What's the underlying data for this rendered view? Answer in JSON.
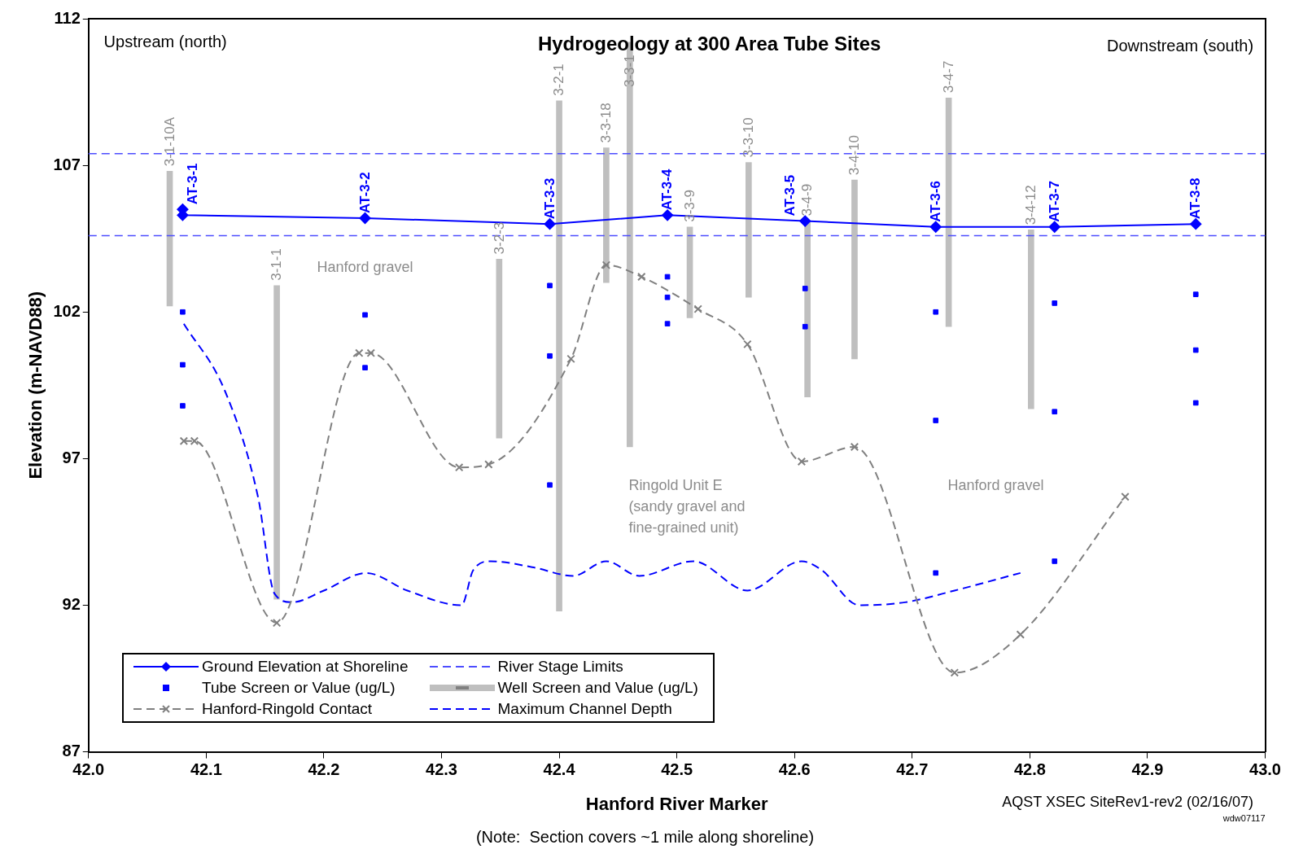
{
  "chart_data": {
    "type": "line",
    "title": "Hydrogeology at 300 Area Tube Sites",
    "xlabel": "Hanford River Marker",
    "ylabel": "Elevation (m-NAVD88)",
    "xlim": [
      42,
      43
    ],
    "xticks": [
      {
        "value": 42,
        "label": "42.0"
      },
      42.1,
      42.2,
      42.3,
      42.4,
      42.5,
      42.6,
      42.7,
      42.8,
      42.9,
      {
        "value": 43,
        "label": "43.0"
      }
    ],
    "ylim": [
      87,
      112
    ],
    "yticks": [
      87,
      92,
      97,
      102,
      107,
      112
    ],
    "ref_lines": [
      {
        "axis": "y",
        "value": 107.4,
        "label": "River Stage Limits",
        "color": "#4d4dff",
        "line_style": "dashed"
      },
      {
        "axis": "y",
        "value": 104.6,
        "color": "#4d4dff",
        "line_style": "dashed"
      }
    ],
    "grid": false,
    "legend": "bottom left",
    "series": [
      {
        "name": "Ground Elevation at Shoreline",
        "color": "#0000ff",
        "marker": "diamond",
        "line_style": "solid",
        "x": [
          42.08,
          42.08,
          42.235,
          42.392,
          42.492,
          42.609,
          42.72,
          42.821,
          42.941
        ],
        "values": [
          105.5,
          105.3,
          105.2,
          105.0,
          105.3,
          105.1,
          104.9,
          104.9,
          105.0
        ]
      },
      {
        "name": "Tube Screen or Value (ug/L)",
        "type": "scatter",
        "color": "#0000ff",
        "marker": "square",
        "x": [
          42.08,
          42.08,
          42.08,
          42.235,
          42.235,
          42.392,
          42.392,
          42.392,
          42.492,
          42.492,
          42.492,
          42.609,
          42.609,
          42.72,
          42.72,
          42.72,
          42.821,
          42.821,
          42.821,
          42.941,
          42.941,
          42.941
        ],
        "values": [
          102.0,
          100.2,
          98.8,
          101.9,
          100.1,
          102.9,
          100.5,
          96.1,
          103.2,
          102.5,
          101.6,
          102.8,
          101.5,
          102.0,
          98.3,
          93.1,
          102.3,
          98.6,
          93.5,
          102.6,
          100.7,
          98.9
        ]
      },
      {
        "name": "Hanford-Ringold Contact",
        "color": "#808080",
        "marker": "cross",
        "line_style": "dashed",
        "x": [
          42.081,
          42.09,
          42.16,
          42.23,
          42.24,
          42.315,
          42.34,
          42.41,
          42.44,
          42.47,
          42.518,
          42.56,
          42.606,
          42.651,
          42.736,
          42.792,
          42.881
        ],
        "values": [
          97.6,
          97.6,
          91.4,
          100.6,
          100.6,
          96.7,
          96.8,
          100.4,
          103.6,
          103.2,
          102.1,
          100.9,
          96.9,
          97.4,
          89.7,
          91.0,
          95.7
        ]
      },
      {
        "name": "Well Screen and Value (ug/L)",
        "type": "bar",
        "color": "#bfbfbf",
        "x": [
          42.069,
          42.16,
          42.349,
          42.4,
          42.44,
          42.46,
          42.511,
          42.561,
          42.611,
          42.651,
          42.731,
          42.801
        ],
        "base": [
          102.2,
          92.2,
          97.7,
          91.8,
          103.0,
          97.4,
          101.8,
          102.5,
          99.1,
          100.4,
          101.5,
          98.7
        ],
        "values": [
          4.6,
          10.7,
          6.1,
          17.4,
          4.6,
          13.8,
          3.1,
          4.6,
          6.0,
          6.1,
          7.8,
          6.1
        ]
      },
      {
        "name": "Maximum Channel Depth",
        "color": "#0000ff",
        "marker": "none",
        "line_style": "dashed",
        "x": [
          42.081,
          42.116,
          42.144,
          42.158,
          42.173,
          42.2,
          42.236,
          42.271,
          42.317,
          42.327,
          42.342,
          42.377,
          42.412,
          42.44,
          42.468,
          42.514,
          42.56,
          42.606,
          42.623,
          42.655,
          42.694,
          42.736,
          42.792
        ],
        "values": [
          101.6,
          99.3,
          95.7,
          92.4,
          92.1,
          92.5,
          93.1,
          92.5,
          92.0,
          93.2,
          93.5,
          93.3,
          93.0,
          93.5,
          93.0,
          93.5,
          92.5,
          93.5,
          93.2,
          92.0,
          92.1,
          92.5,
          93.1
        ]
      }
    ],
    "annotations": [
      "Upstream (north)",
      "Downstream (south)",
      "Hanford gravel",
      "Ringold Unit E\n(sandy gravel and\nfine-grained unit)",
      "Hanford gravel",
      "AQST XSEC SiteRev1-rev2 (02/16/07)",
      "wdw07117",
      "(Note:  Section covers ~1 mile along shoreline)",
      {
        "text": "AT-3-1",
        "x": 42.08,
        "y": 105.5
      },
      {
        "text": "AT-3-2",
        "x": 42.235,
        "y": 105.2
      },
      {
        "text": "AT-3-3",
        "x": 42.392,
        "y": 105.0
      },
      {
        "text": "AT-3-4",
        "x": 42.492,
        "y": 105.3
      },
      {
        "text": "AT-3-5",
        "x": 42.609,
        "y": 105.1
      },
      {
        "text": "AT-3-6",
        "x": 42.72,
        "y": 104.9
      },
      {
        "text": "AT-3-7",
        "x": 42.821,
        "y": 104.9
      },
      {
        "text": "AT-3-8",
        "x": 42.941,
        "y": 105.0
      },
      {
        "text": "3-1-10A",
        "x": 42.069,
        "y": 106.8
      },
      {
        "text": "3-1-1",
        "x": 42.16,
        "y": 102.9
      },
      {
        "text": "3-2-3",
        "x": 42.349,
        "y": 103.8
      },
      {
        "text": "3-2-1",
        "x": 42.4,
        "y": 109.2
      },
      {
        "text": "3-3-18",
        "x": 42.44,
        "y": 107.6
      },
      {
        "text": "3-3-1",
        "x": 42.46,
        "y": 109.5
      },
      {
        "text": "3-3-9",
        "x": 42.511,
        "y": 104.9
      },
      {
        "text": "3-3-10",
        "x": 42.561,
        "y": 107.1
      },
      {
        "text": "3-4-9",
        "x": 42.611,
        "y": 105.1
      },
      {
        "text": "3-4-10",
        "x": 42.651,
        "y": 106.5
      },
      {
        "text": "3-4-7",
        "x": 42.731,
        "y": 109.3
      },
      {
        "text": "3-4-12",
        "x": 42.801,
        "y": 104.8
      }
    ]
  }
}
